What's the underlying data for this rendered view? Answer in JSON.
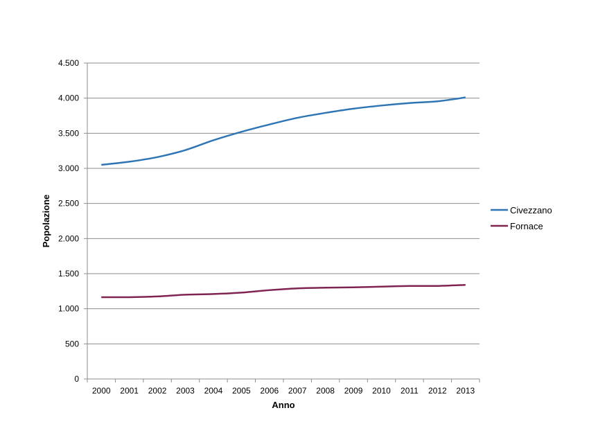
{
  "chart_data": {
    "type": "line",
    "title": "",
    "xlabel": "Anno",
    "ylabel": "Popolazione",
    "ylim": [
      0,
      4500
    ],
    "yticks": [
      0,
      500,
      1000,
      1500,
      2000,
      2500,
      3000,
      3500,
      4000,
      4500
    ],
    "ytick_labels": [
      "0",
      "500",
      "1.000",
      "1.500",
      "2.000",
      "2.500",
      "3.000",
      "3.500",
      "4.000",
      "4.500"
    ],
    "categories": [
      "2000",
      "2001",
      "2002",
      "2003",
      "2004",
      "2005",
      "2006",
      "2007",
      "2008",
      "2009",
      "2010",
      "2011",
      "2012",
      "2013"
    ],
    "grid": true,
    "legend_position": "right",
    "series": [
      {
        "name": "Civezzano",
        "color": "#2E75B6",
        "values": [
          3050,
          3095,
          3160,
          3260,
          3400,
          3520,
          3625,
          3720,
          3790,
          3850,
          3895,
          3930,
          3955,
          4010
        ]
      },
      {
        "name": "Fornace",
        "color": "#7F2450",
        "values": [
          1165,
          1165,
          1175,
          1200,
          1210,
          1230,
          1265,
          1290,
          1300,
          1305,
          1315,
          1325,
          1325,
          1340
        ]
      }
    ]
  }
}
